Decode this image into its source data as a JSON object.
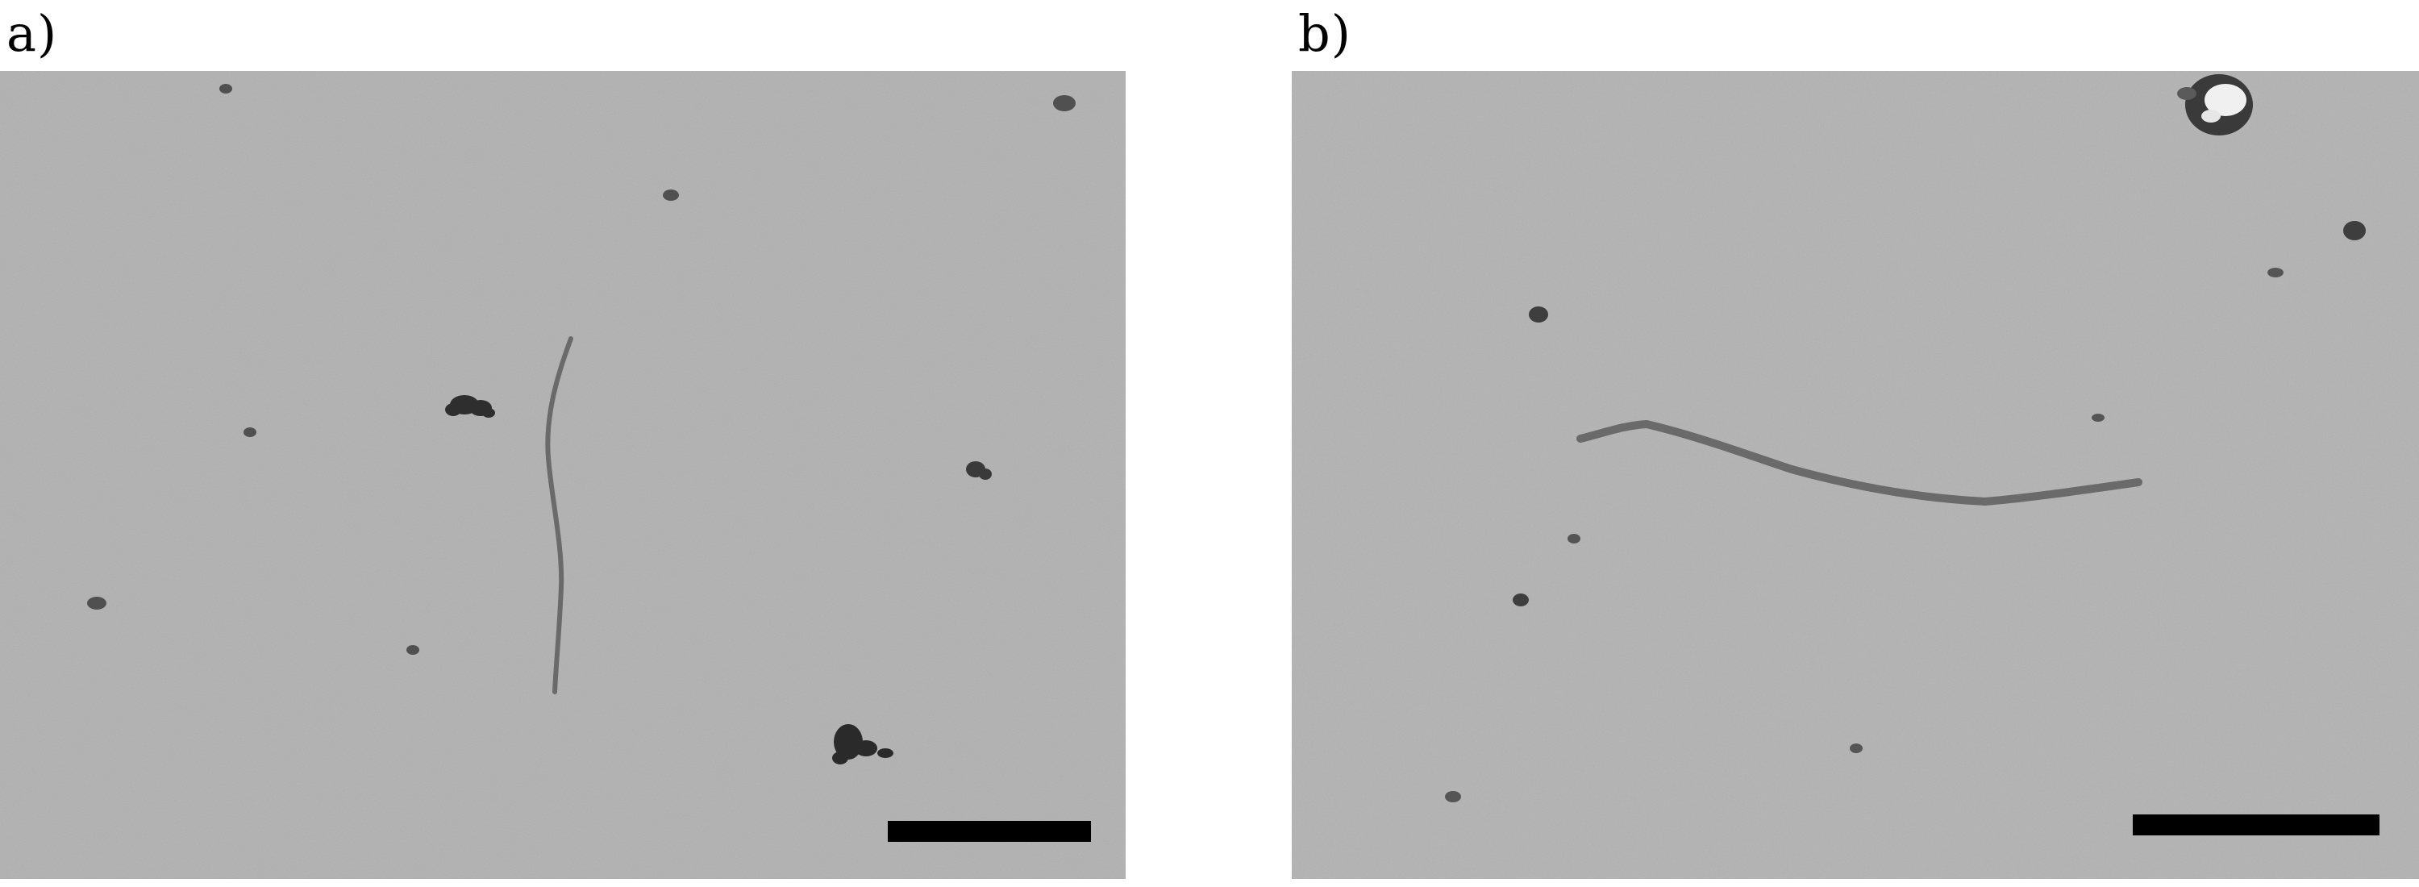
{
  "panels": [
    {
      "label": "a)"
    },
    {
      "label": "b)"
    }
  ],
  "colors": {
    "background": "#b4b4b4",
    "speckle": "#8a8a8a",
    "fiber": "#6e6e6e",
    "aggregate": "#2a2a2a",
    "scale_bar": "#000000"
  }
}
